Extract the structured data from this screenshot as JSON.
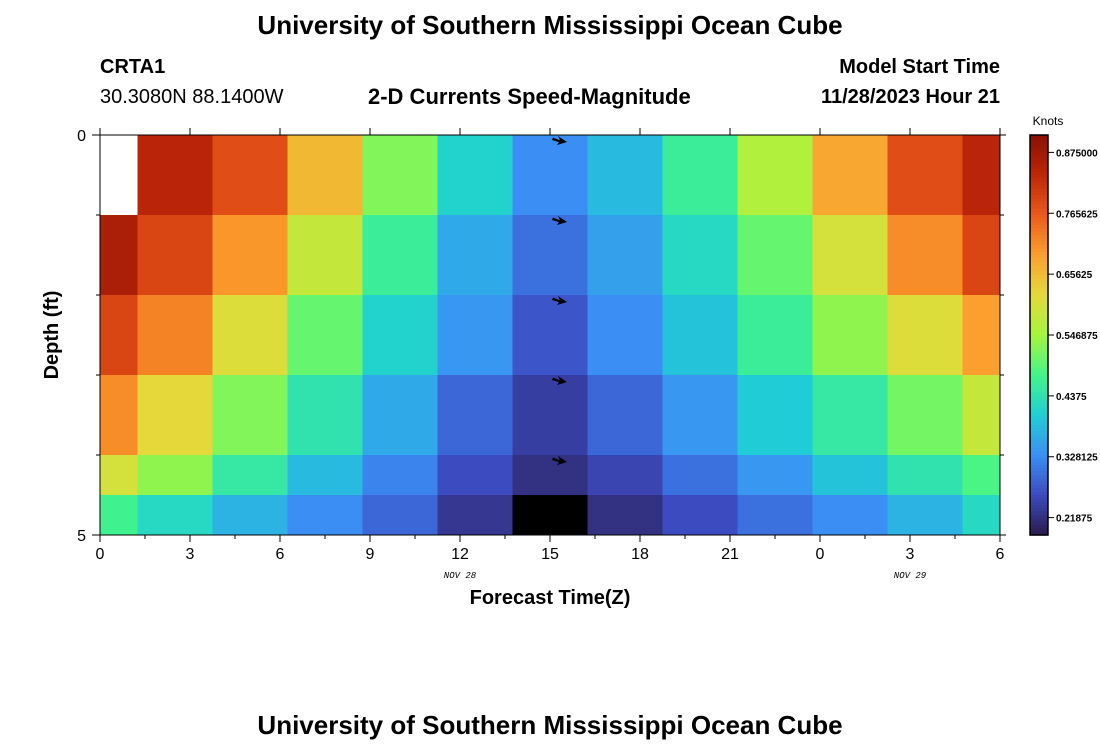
{
  "header": {
    "title": "University of Southern Mississippi Ocean Cube",
    "station": "CRTA1",
    "coords": "30.3080N  88.1400W",
    "subtitle": "2-D Currents Speed-Magnitude",
    "model_start_label": "Model Start Time",
    "model_start_value": "11/28/2023 Hour 21"
  },
  "footer": {
    "title": "University of Southern Mississippi Ocean Cube"
  },
  "chart_data": {
    "type": "heatmap",
    "title": "2-D Currents Speed-Magnitude",
    "xlabel": "Forecast Time(Z)",
    "ylabel": "Depth (ft)",
    "x_ticks": [
      "0",
      "3",
      "6",
      "9",
      "12",
      "15",
      "18",
      "21",
      "0",
      "3",
      "6"
    ],
    "x_tick_hours": [
      0,
      3,
      6,
      9,
      12,
      15,
      18,
      21,
      24,
      27,
      30
    ],
    "x_range": [
      0,
      30
    ],
    "y_ticks": [
      "0",
      "5"
    ],
    "y_range": [
      0,
      5
    ],
    "date_labels": [
      {
        "text": "NOV 28",
        "hour": 12
      },
      {
        "text": "NOV 29",
        "hour": 27
      }
    ],
    "cell_time_edges": [
      0,
      1.25,
      3.75,
      6.25,
      8.75,
      11.25,
      13.75,
      16.25,
      18.75,
      21.25,
      23.75,
      26.25,
      28.75,
      30
    ],
    "cell_depth_edges": [
      0,
      1,
      2,
      3,
      4,
      4.5,
      5
    ],
    "values_knots": [
      [
        null,
        0.84,
        0.78,
        0.66,
        0.52,
        0.41,
        0.33,
        0.38,
        0.46,
        0.56,
        0.68,
        0.78,
        0.84
      ],
      [
        0.86,
        0.79,
        0.7,
        0.58,
        0.46,
        0.36,
        0.3,
        0.35,
        0.42,
        0.5,
        0.6,
        0.71,
        0.79
      ],
      [
        0.79,
        0.72,
        0.61,
        0.5,
        0.41,
        0.34,
        0.27,
        0.33,
        0.39,
        0.46,
        0.53,
        0.61,
        0.69
      ],
      [
        0.71,
        0.62,
        0.52,
        0.44,
        0.36,
        0.29,
        0.24,
        0.29,
        0.34,
        0.4,
        0.45,
        0.51,
        0.58
      ],
      [
        0.6,
        0.53,
        0.45,
        0.38,
        0.32,
        0.26,
        0.22,
        0.25,
        0.3,
        0.34,
        0.39,
        0.44,
        0.48
      ],
      [
        0.47,
        0.42,
        0.37,
        0.33,
        0.29,
        0.23,
        0.1,
        0.22,
        0.26,
        0.3,
        0.33,
        0.37,
        0.42
      ]
    ],
    "arrows": [
      {
        "hour": 15.3,
        "depth": 0.05
      },
      {
        "hour": 15.3,
        "depth": 1.05
      },
      {
        "hour": 15.3,
        "depth": 2.05
      },
      {
        "hour": 15.3,
        "depth": 3.05
      },
      {
        "hour": 15.3,
        "depth": 4.05
      }
    ],
    "colorbar": {
      "unit_label": "Knots",
      "ticks": [
        0.21875,
        0.328125,
        0.4375,
        0.546875,
        0.65625,
        0.765625,
        0.875
      ],
      "tick_labels": [
        "0.21875",
        "0.328125",
        "0.4375",
        "0.546875",
        "0.65625",
        "0.765625",
        "0.875000"
      ],
      "range": [
        0.1875,
        0.90625
      ]
    },
    "colors": {
      "stops": [
        "#2b1b4e",
        "#3c4bc0",
        "#3b8ff5",
        "#1fcfd4",
        "#43f58a",
        "#a6f53c",
        "#e4d93a",
        "#fba02e",
        "#eb5a1a",
        "#be2608",
        "#8a0f04"
      ],
      "high": "#ffffff",
      "low": "#000000",
      "arrow": "#000000",
      "axis": "#000000"
    }
  }
}
